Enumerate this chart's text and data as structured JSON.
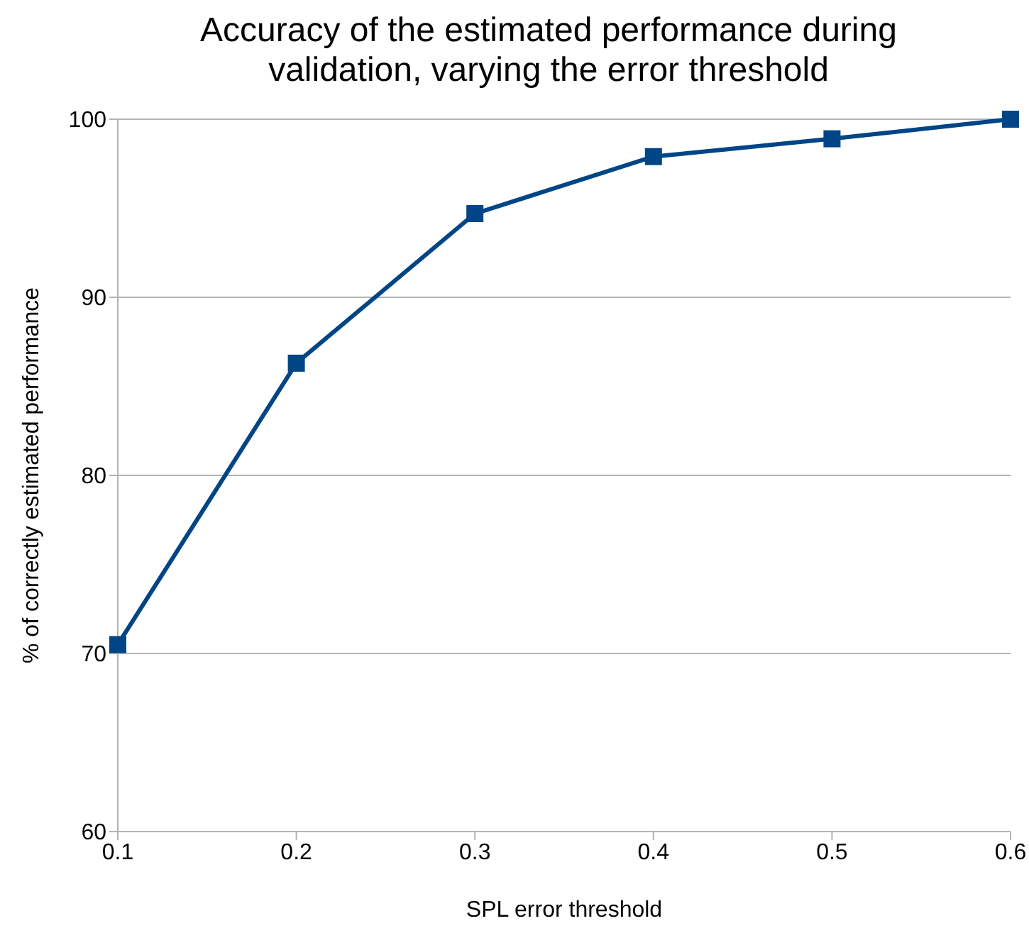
{
  "chart_data": {
    "type": "line",
    "title": "Accuracy of the estimated performance during validation, varying the error threshold",
    "xlabel": "SPL error threshold",
    "ylabel": "% of correctly estimated performance",
    "x": [
      0.1,
      0.2,
      0.3,
      0.4,
      0.5,
      0.6
    ],
    "series": [
      {
        "color": "#004586",
        "values": [
          70.5,
          86.3,
          94.7,
          97.9,
          98.9,
          100
        ]
      }
    ],
    "xlim": [
      0.1,
      0.6
    ],
    "xticks": [
      0.1,
      0.2,
      0.3,
      0.4,
      0.5,
      0.6
    ],
    "ylim": [
      60,
      100
    ],
    "yticks": [
      60,
      70,
      80,
      90,
      100
    ],
    "grid": "y",
    "marker": "square",
    "line_style": "solid",
    "legend": false
  }
}
